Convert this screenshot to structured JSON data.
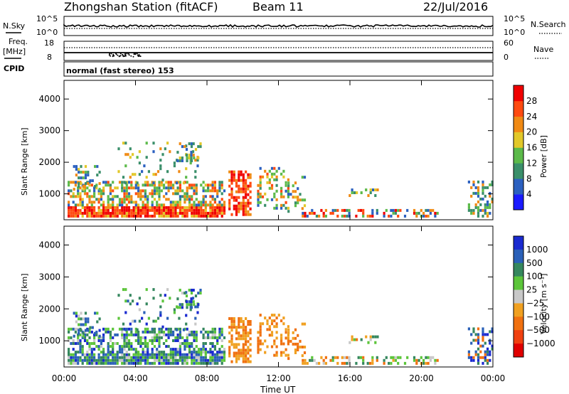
{
  "header": {
    "station": "Zhongshan Station (fitACF)",
    "beam": "Beam 11",
    "date": "22/Jul/2016"
  },
  "top_panels": {
    "nsky_label": "N.Sky",
    "nsky_ticks": [
      "10^5",
      "10^0"
    ],
    "nsearch_label": "N.Search",
    "nsearch_ticks": [
      "10^5",
      "10^0"
    ],
    "freq_label_1": "Freq.",
    "freq_label_2": "[MHz]",
    "freq_ticks": [
      "18",
      "8"
    ],
    "nave_label": "Nave",
    "nave_ticks": [
      "60",
      "0"
    ],
    "cpid_label": "CPID",
    "cpid_text": "normal (fast stereo) 153"
  },
  "chart_data": [
    {
      "type": "heatmap",
      "name": "power",
      "ylabel": "Slant Range [km]",
      "ylim": [
        180,
        4590
      ],
      "yticks": [
        "1000",
        "2000",
        "3000",
        "4000"
      ],
      "colorbar": {
        "label": "Power [dB]",
        "ticks": [
          "4",
          "8",
          "12",
          "16",
          "20",
          "24",
          "28"
        ],
        "colors": [
          "#1a1aff",
          "#2b60c0",
          "#3a8f6a",
          "#5cba4a",
          "#e2c829",
          "#f08a14",
          "#ff4a10",
          "#f00000"
        ]
      }
    },
    {
      "type": "heatmap",
      "name": "velocity",
      "ylabel": "Slant Range [km]",
      "ylim": [
        180,
        4590
      ],
      "yticks": [
        "1000",
        "2000",
        "3000",
        "4000"
      ],
      "xlabel": "Time UT",
      "xticks": [
        "00:00",
        "04:00",
        "08:00",
        "12:00",
        "16:00",
        "20:00",
        "00:00"
      ],
      "colorbar": {
        "label": "Velocity [m s⁻¹]",
        "ticks": [
          "1000",
          "500",
          "100",
          "25",
          "−25",
          "−100",
          "−500",
          "−1000"
        ],
        "colors": [
          "#1a2ad0",
          "#2a60b8",
          "#35875e",
          "#5cc53a",
          "#c8c8c8",
          "#f0a020",
          "#f07010",
          "#f04010",
          "#e00000"
        ]
      }
    }
  ]
}
